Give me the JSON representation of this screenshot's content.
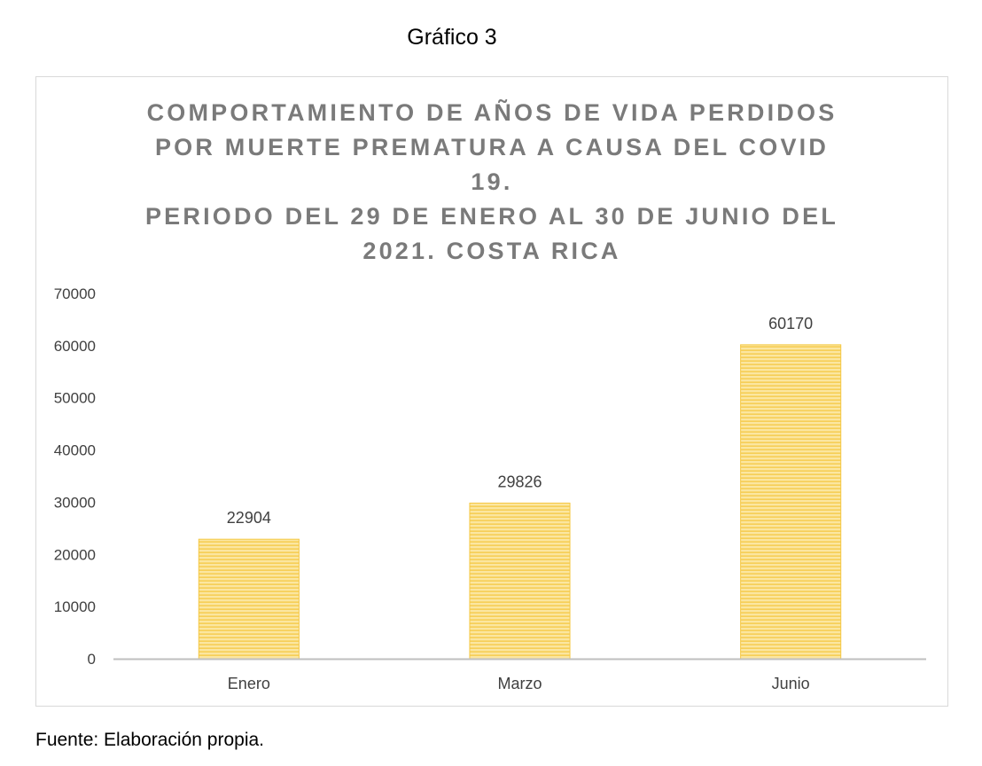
{
  "caption": "Gráfico 3",
  "chart_data": {
    "type": "bar",
    "title_lines": [
      "COMPORTAMIENTO DE AÑOS DE VIDA PERDIDOS",
      "POR MUERTE PREMATURA A CAUSA DEL COVID",
      "19.",
      "PERIODO DEL 29 DE ENERO AL 30 DE JUNIO DEL",
      "2021. COSTA RICA"
    ],
    "categories": [
      "Enero",
      "Marzo",
      "Junio"
    ],
    "values": [
      22904,
      29826,
      60170
    ],
    "data_labels": [
      "22904",
      "29826",
      "60170"
    ],
    "ylim": [
      0,
      70000
    ],
    "yticks": [
      0,
      10000,
      20000,
      30000,
      40000,
      50000,
      60000,
      70000
    ],
    "ytick_labels": [
      "0",
      "10000",
      "20000",
      "30000",
      "40000",
      "50000",
      "60000",
      "70000"
    ],
    "grid": false,
    "legend": "none",
    "bar_color": "#f5c844",
    "bar_stripe_color": "#fbe6a0",
    "axis_color": "#bfbfbf"
  },
  "source": "Fuente: Elaboración propia."
}
